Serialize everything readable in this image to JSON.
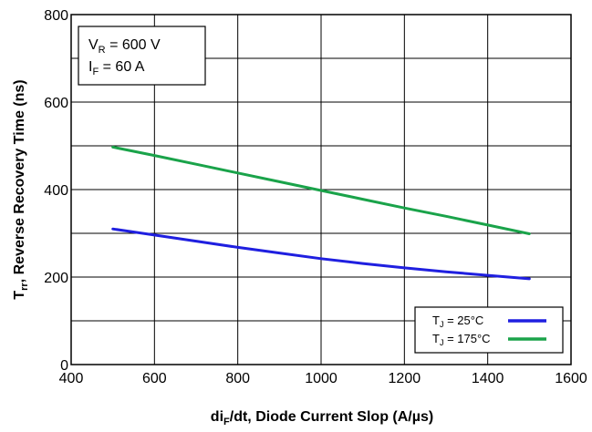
{
  "chart_data": {
    "type": "line",
    "x_axis": {
      "label_main": "di",
      "label_sub": "F",
      "label_rest": "/dt, Diode Current Slop (A/µs)",
      "range": [
        400,
        1600
      ],
      "ticks": [
        400,
        600,
        800,
        1000,
        1200,
        1400,
        1600
      ]
    },
    "y_axis": {
      "label_main": "T",
      "label_sub": "rr",
      "label_rest": ", Reverse Recovery Time (ns)",
      "range": [
        0,
        800
      ],
      "ticks": [
        0,
        200,
        400,
        600,
        800
      ],
      "minor_gridlines": [
        100,
        300,
        500,
        700
      ]
    },
    "grid": true,
    "conditions": [
      {
        "main": "V",
        "sub": "R",
        "rest": " = 600 V"
      },
      {
        "main": "I",
        "sub": "F",
        "rest": " = 60 A"
      }
    ],
    "legend_position": "bottom-right",
    "series": [
      {
        "name_main": "T",
        "name_sub": "J",
        "name_rest": " = 25°C",
        "color": "#1f1fe0",
        "x": [
          500,
          600,
          700,
          800,
          900,
          1000,
          1100,
          1200,
          1300,
          1400,
          1500
        ],
        "y": [
          310,
          296,
          282,
          268,
          255,
          242,
          231,
          221,
          212,
          204,
          196
        ]
      },
      {
        "name_main": "T",
        "name_sub": "J",
        "name_rest": " = 175°C",
        "color": "#1aa34a",
        "x": [
          500,
          600,
          700,
          800,
          900,
          1000,
          1100,
          1200,
          1300,
          1400,
          1500
        ],
        "y": [
          497,
          478,
          458,
          438,
          418,
          398,
          378,
          358,
          339,
          319,
          299
        ]
      }
    ]
  }
}
